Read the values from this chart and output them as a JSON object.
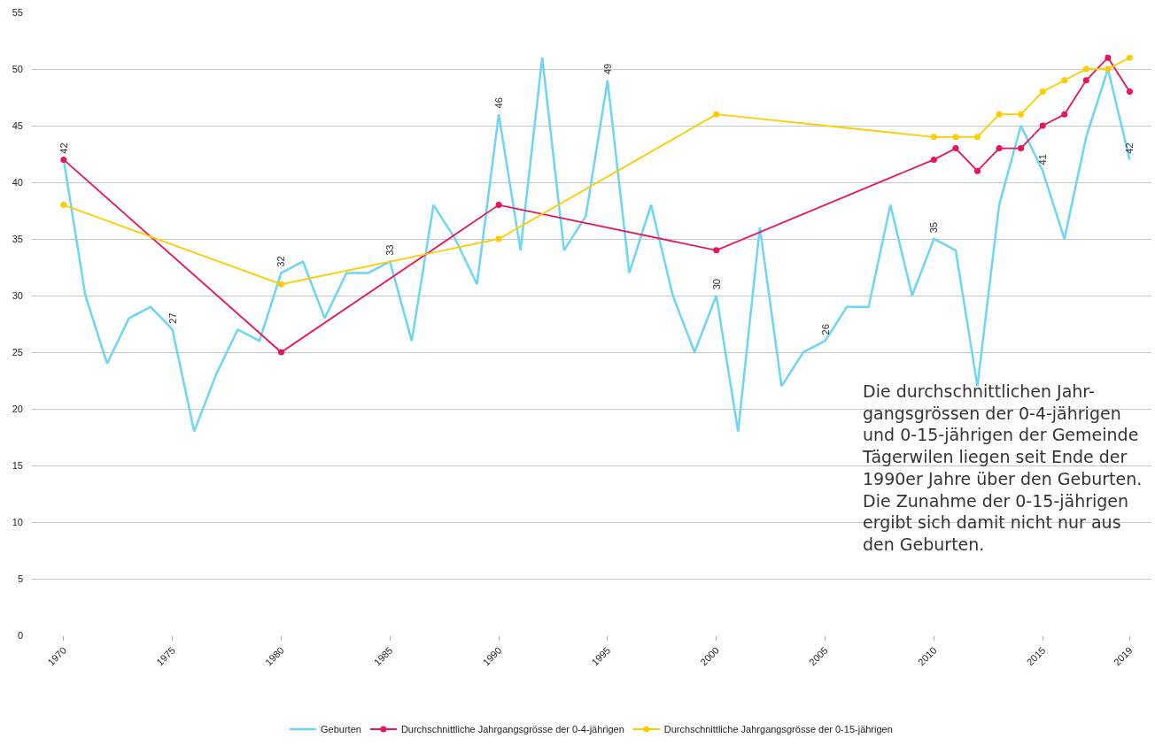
{
  "chart_data": {
    "type": "line",
    "xlim": [
      1968.5,
      2020
    ],
    "xticks": [
      1970,
      1975,
      1980,
      1985,
      1990,
      1995,
      2000,
      2005,
      2010,
      2015,
      2019
    ],
    "ylim": [
      0,
      55
    ],
    "yticks": [
      0,
      5,
      10,
      15,
      20,
      25,
      30,
      35,
      40,
      45,
      50,
      55
    ],
    "grid": "y",
    "legend": "bottom",
    "line_style": "solid",
    "series": [
      {
        "name": "Geburten",
        "color": "#6dd5f5",
        "marker": "none",
        "x": [
          1970,
          1971,
          1972,
          1973,
          1974,
          1975,
          1976,
          1977,
          1978,
          1979,
          1980,
          1981,
          1982,
          1983,
          1984,
          1985,
          1986,
          1987,
          1988,
          1989,
          1990,
          1991,
          1992,
          1993,
          1994,
          1995,
          1996,
          1997,
          1998,
          1999,
          2000,
          2001,
          2002,
          2003,
          2004,
          2005,
          2006,
          2007,
          2008,
          2009,
          2010,
          2011,
          2012,
          2013,
          2014,
          2015,
          2016,
          2017,
          2018,
          2019
        ],
        "values": [
          42,
          30,
          24,
          28,
          29,
          27,
          18,
          23,
          27,
          26,
          32,
          33,
          28,
          32,
          32,
          33,
          26,
          38,
          35,
          31,
          46,
          34,
          51,
          34,
          37,
          49,
          32,
          38,
          30,
          25,
          30,
          18,
          36,
          22,
          25,
          26,
          29,
          29,
          38,
          30,
          35,
          34,
          22,
          38,
          45,
          41,
          35,
          44,
          50,
          42
        ],
        "value_labels": [
          "42",
          null,
          null,
          null,
          null,
          "27",
          null,
          null,
          null,
          null,
          "32",
          null,
          null,
          null,
          null,
          "33",
          null,
          null,
          null,
          null,
          "46",
          null,
          null,
          null,
          null,
          "49",
          null,
          null,
          null,
          null,
          "30",
          null,
          null,
          null,
          null,
          "26",
          null,
          null,
          null,
          null,
          "35",
          null,
          null,
          null,
          null,
          "41",
          null,
          null,
          null,
          "42"
        ]
      },
      {
        "name": "Durchschnittliche Jahrgangsgrösse der 0-4-jährigen",
        "color": "#e8155b",
        "marker": "circle",
        "x": [
          1970,
          1980,
          1990,
          2000,
          2010,
          2011,
          2012,
          2013,
          2014,
          2015,
          2016,
          2017,
          2018,
          2019
        ],
        "values": [
          42,
          25,
          38,
          34,
          42,
          43,
          41,
          43,
          43,
          45,
          46,
          49,
          51,
          48
        ]
      },
      {
        "name": "Durchschnittliche Jahrgangsgrösse der 0-15-jährigen",
        "color": "#fecc00",
        "marker": "circle",
        "x": [
          1970,
          1980,
          1990,
          2000,
          2010,
          2011,
          2012,
          2013,
          2014,
          2015,
          2016,
          2017,
          2018,
          2019
        ],
        "values": [
          38,
          31,
          35,
          46,
          44,
          44,
          44,
          46,
          46,
          48,
          49,
          50,
          50,
          51
        ]
      }
    ],
    "annotations": [
      "Die durchschnittlichen Jahr-\ngangsgrössen der 0-4-jährigen\nund 0-15-jährigen der Gemeinde\nTägerwilen liegen seit Ende der\n1990er Jahre über den Geburten.\nDie Zunahme der 0-15-jährigen\nergibt sich damit nicht nur aus\nden Geburten."
    ]
  }
}
